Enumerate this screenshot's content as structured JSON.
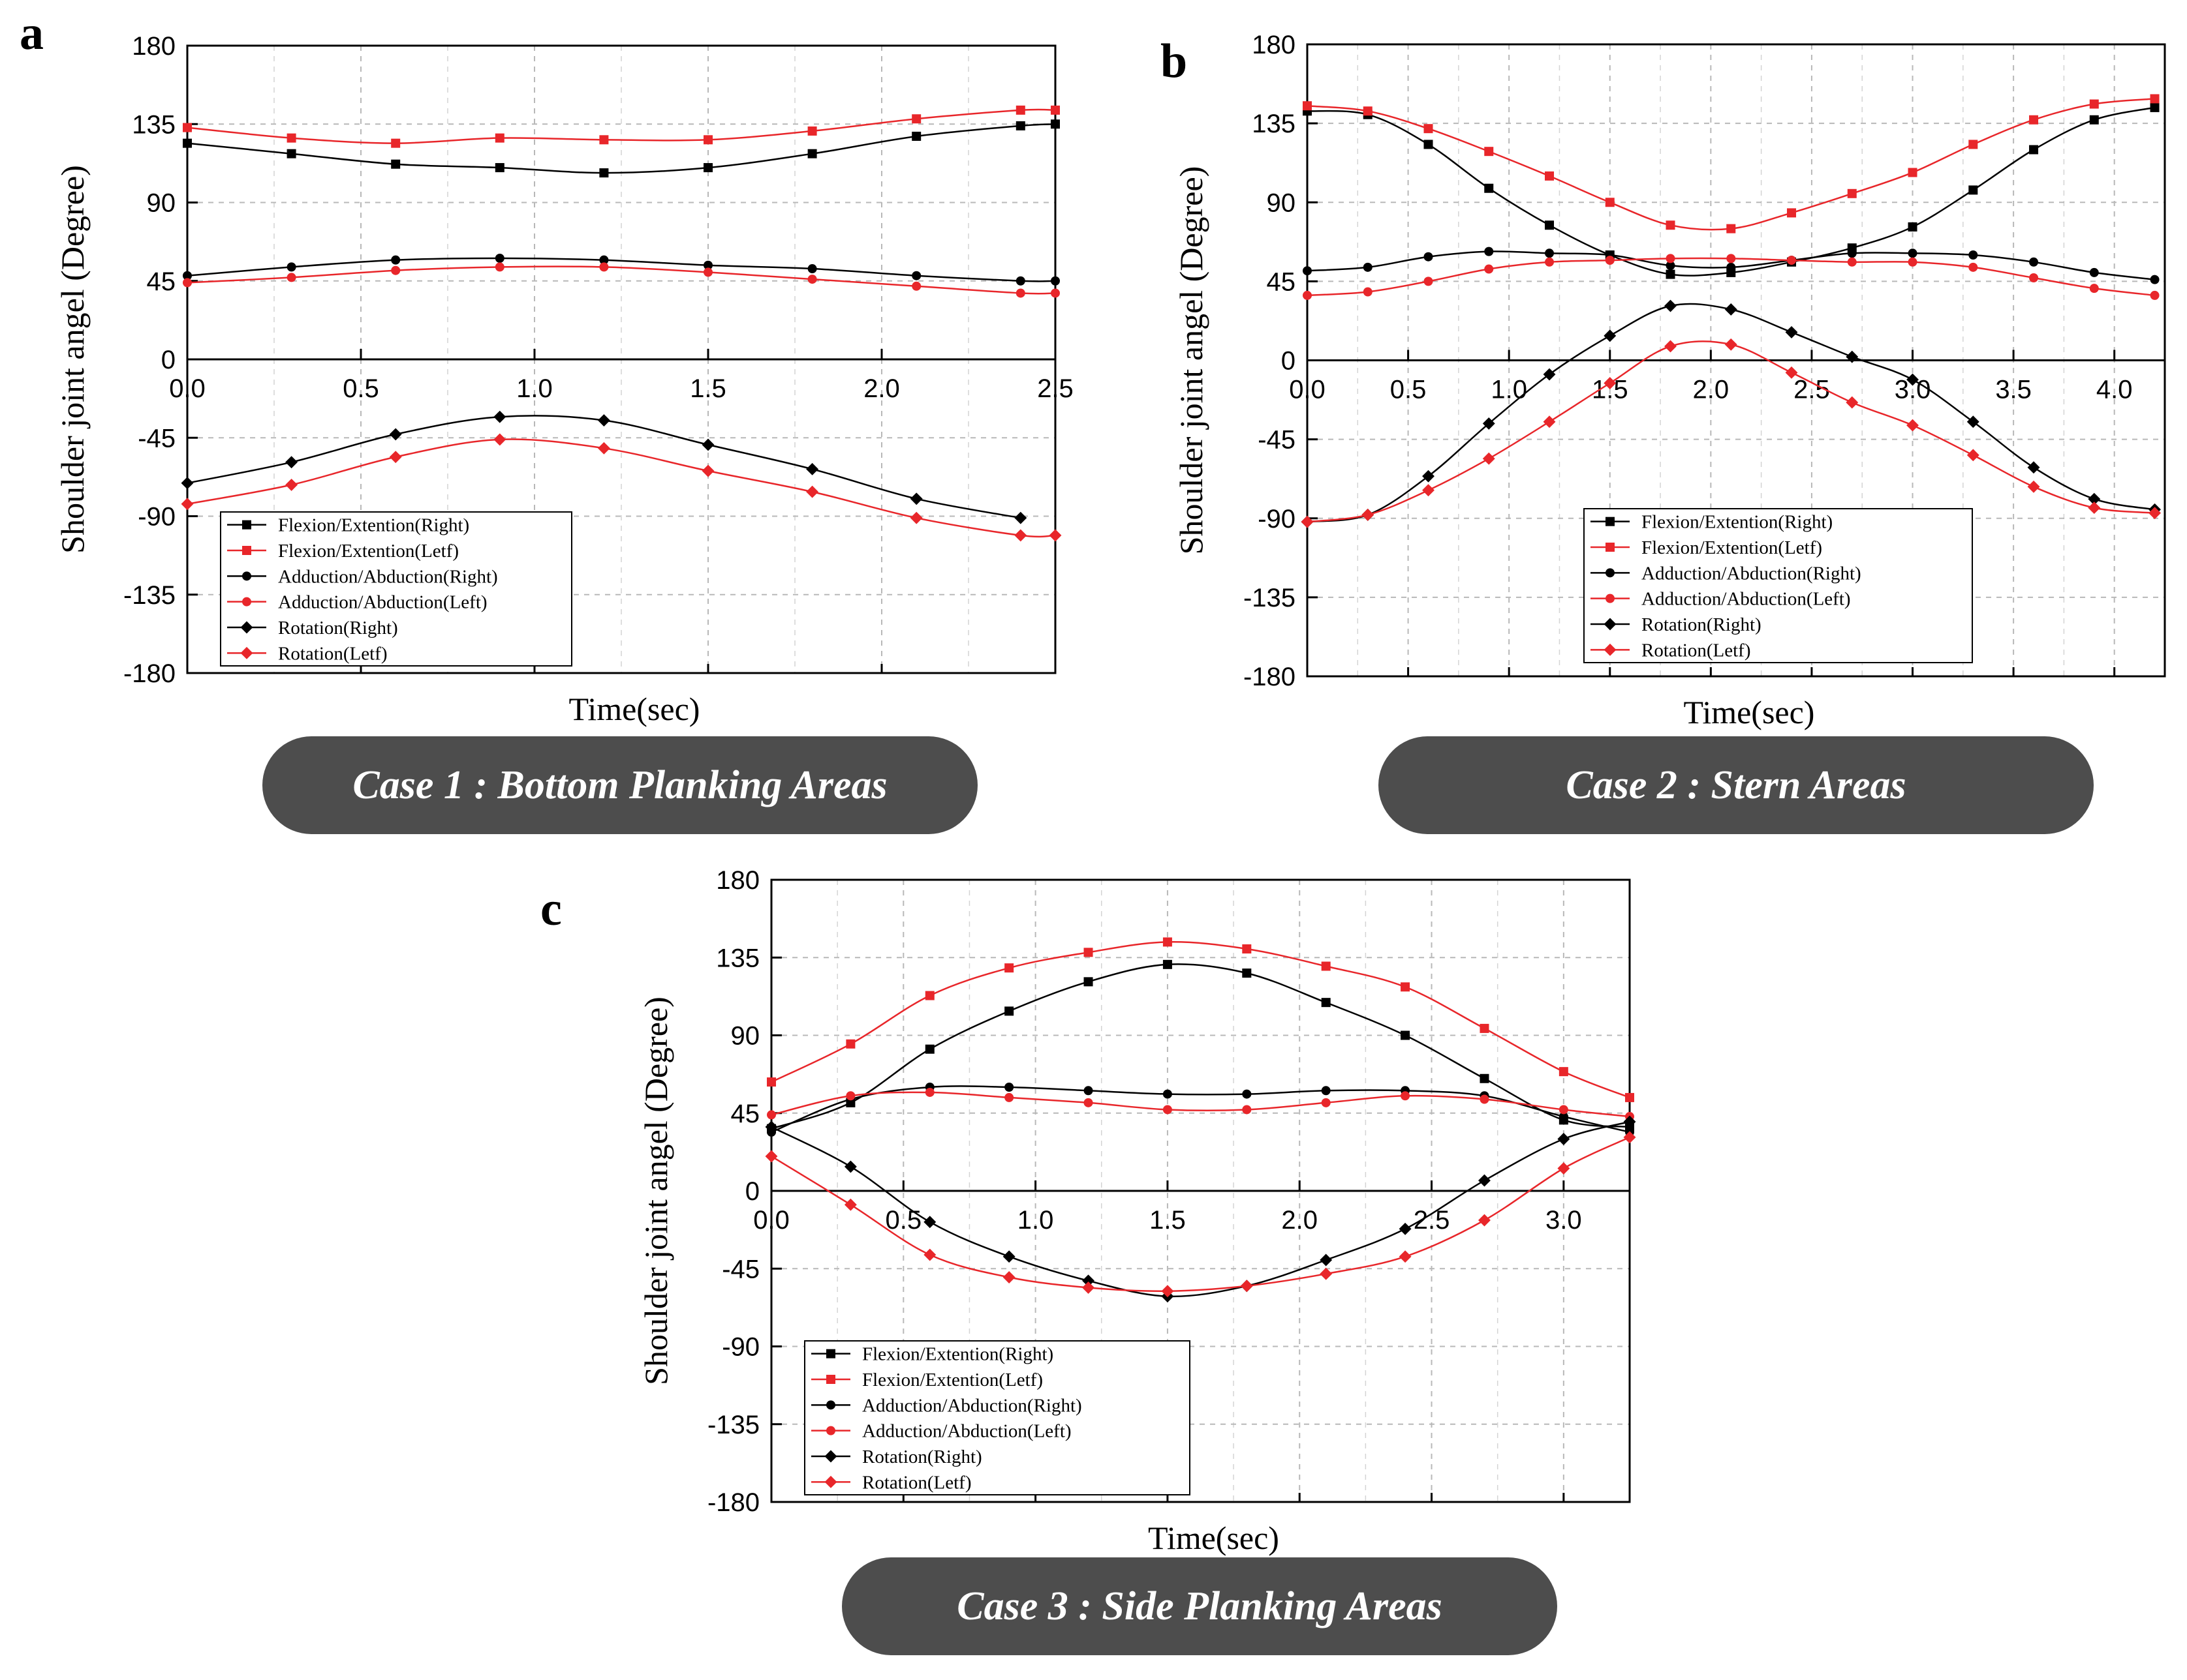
{
  "captions": {
    "a": "Case 1 : Bottom Planking Areas",
    "b": "Case 2 : Stern Areas",
    "c": "Case 3 : Side Planking Areas"
  },
  "colors": {
    "black": "#000000",
    "red": "#e8262a",
    "caption_bg": "#4d4d4d"
  },
  "chart_data": [
    {
      "id": "a",
      "letter": "a",
      "type": "line",
      "title": "",
      "xlabel": "Time(sec)",
      "ylabel": "Shoulder joint angel (Degree)",
      "xlim": [
        0,
        2.5
      ],
      "ylim": [
        -180,
        180
      ],
      "xticks": [
        "0.0",
        "0.5",
        "1.0",
        "1.5",
        "2.0",
        "2.5"
      ],
      "yticks": [
        "180",
        "135",
        "90",
        "45",
        "0",
        "-45",
        "-90",
        "-135",
        "-180"
      ],
      "grid": true,
      "legend_placement": "lower-left",
      "series": [
        {
          "name": "Flexion/Extention(Right)",
          "color": "#000000",
          "marker": "square",
          "x": [
            0,
            0.3,
            0.6,
            0.9,
            1.2,
            1.5,
            1.8,
            2.1,
            2.4,
            2.5
          ],
          "y": [
            124,
            118,
            112,
            110,
            107,
            110,
            118,
            128,
            134,
            135
          ]
        },
        {
          "name": "Flexion/Extention(Letf)",
          "color": "#e8262a",
          "marker": "square",
          "x": [
            0,
            0.3,
            0.6,
            0.9,
            1.2,
            1.5,
            1.8,
            2.1,
            2.4,
            2.5
          ],
          "y": [
            133,
            127,
            124,
            127,
            126,
            126,
            131,
            138,
            143,
            143
          ]
        },
        {
          "name": "Adduction/Abduction(Right)",
          "color": "#000000",
          "marker": "circle",
          "x": [
            0,
            0.3,
            0.6,
            0.9,
            1.2,
            1.5,
            1.8,
            2.1,
            2.4,
            2.5
          ],
          "y": [
            48,
            53,
            57,
            58,
            57,
            54,
            52,
            48,
            45,
            45
          ]
        },
        {
          "name": "Adduction/Abduction(Left)",
          "color": "#e8262a",
          "marker": "circle",
          "x": [
            0,
            0.3,
            0.6,
            0.9,
            1.2,
            1.5,
            1.8,
            2.1,
            2.4,
            2.5
          ],
          "y": [
            44,
            47,
            51,
            53,
            53,
            50,
            46,
            42,
            38,
            38
          ]
        },
        {
          "name": "Rotation(Right)",
          "color": "#000000",
          "marker": "diamond",
          "x": [
            0,
            0.3,
            0.6,
            0.9,
            1.2,
            1.5,
            1.8,
            2.1,
            2.4
          ],
          "y": [
            -71,
            -59,
            -43,
            -33,
            -35,
            -49,
            -63,
            -80,
            -91
          ]
        },
        {
          "name": "Rotation(Letf)",
          "color": "#e8262a",
          "marker": "diamond",
          "x": [
            0,
            0.3,
            0.6,
            0.9,
            1.2,
            1.5,
            1.8,
            2.1,
            2.4,
            2.5
          ],
          "y": [
            -83,
            -72,
            -56,
            -46,
            -51,
            -64,
            -76,
            -91,
            -101,
            -101
          ]
        }
      ]
    },
    {
      "id": "b",
      "letter": "b",
      "type": "line",
      "title": "",
      "xlabel": "Time(sec)",
      "ylabel": "Shoulder joint angel (Degree)",
      "xlim": [
        0,
        4.25
      ],
      "ylim": [
        -180,
        180
      ],
      "xticks": [
        "0.0",
        "0.5",
        "1.0",
        "1.5",
        "2.0",
        "2.5",
        "3.0",
        "3.5",
        "4.0"
      ],
      "yticks": [
        "180",
        "135",
        "90",
        "45",
        "0",
        "-45",
        "-90",
        "-135",
        "-180"
      ],
      "grid": true,
      "legend_placement": "lower-center",
      "series": [
        {
          "name": "Flexion/Extention(Right)",
          "color": "#000000",
          "marker": "square",
          "x": [
            0,
            0.3,
            0.6,
            0.9,
            1.2,
            1.5,
            1.8,
            2.1,
            2.4,
            2.7,
            3.0,
            3.3,
            3.6,
            3.9,
            4.2
          ],
          "y": [
            142,
            140,
            123,
            98,
            77,
            60,
            49,
            50,
            56,
            64,
            76,
            97,
            120,
            137,
            144
          ]
        },
        {
          "name": "Flexion/Extention(Letf)",
          "color": "#e8262a",
          "marker": "square",
          "x": [
            0,
            0.3,
            0.6,
            0.9,
            1.2,
            1.5,
            1.8,
            2.1,
            2.4,
            2.7,
            3.0,
            3.3,
            3.6,
            3.9,
            4.2
          ],
          "y": [
            145,
            142,
            132,
            119,
            105,
            90,
            77,
            75,
            84,
            95,
            107,
            123,
            137,
            146,
            149
          ]
        },
        {
          "name": "Adduction/Abduction(Right)",
          "color": "#000000",
          "marker": "circle",
          "x": [
            0,
            0.3,
            0.6,
            0.9,
            1.2,
            1.5,
            1.8,
            2.1,
            2.4,
            2.7,
            3.0,
            3.3,
            3.6,
            3.9,
            4.2
          ],
          "y": [
            51,
            53,
            59,
            62,
            61,
            60,
            54,
            53,
            57,
            61,
            61,
            60,
            56,
            50,
            46
          ]
        },
        {
          "name": "Adduction/Abduction(Left)",
          "color": "#e8262a",
          "marker": "circle",
          "x": [
            0,
            0.3,
            0.6,
            0.9,
            1.2,
            1.5,
            1.8,
            2.1,
            2.4,
            2.7,
            3.0,
            3.3,
            3.6,
            3.9,
            4.2
          ],
          "y": [
            37,
            39,
            45,
            52,
            56,
            57,
            58,
            58,
            57,
            56,
            56,
            53,
            47,
            41,
            37
          ]
        },
        {
          "name": "Rotation(Right)",
          "color": "#000000",
          "marker": "diamond",
          "x": [
            0,
            0.3,
            0.6,
            0.9,
            1.2,
            1.5,
            1.8,
            2.1,
            2.4,
            2.7,
            3.0,
            3.3,
            3.6,
            3.9,
            4.2
          ],
          "y": [
            -92,
            -88,
            -66,
            -36,
            -8,
            14,
            31,
            29,
            16,
            2,
            -11,
            -35,
            -61,
            -79,
            -85
          ]
        },
        {
          "name": "Rotation(Letf)",
          "color": "#e8262a",
          "marker": "diamond",
          "x": [
            0,
            0.3,
            0.6,
            0.9,
            1.2,
            1.5,
            1.8,
            2.1,
            2.4,
            2.7,
            3.0,
            3.3,
            3.6,
            3.9,
            4.2
          ],
          "y": [
            -92,
            -88,
            -74,
            -56,
            -35,
            -13,
            8,
            9,
            -7,
            -24,
            -37,
            -54,
            -72,
            -84,
            -87
          ]
        }
      ]
    },
    {
      "id": "c",
      "letter": "c",
      "type": "line",
      "title": "",
      "xlabel": "Time(sec)",
      "ylabel": "Shoulder joint angel (Degree)",
      "xlim": [
        0,
        3.25
      ],
      "ylim": [
        -180,
        180
      ],
      "xticks": [
        "0.0",
        "0.5",
        "1.0",
        "1.5",
        "2.0",
        "2.5",
        "3.0"
      ],
      "yticks": [
        "180",
        "135",
        "90",
        "45",
        "0",
        "-45",
        "-90",
        "-135",
        "-180"
      ],
      "grid": true,
      "legend_placement": "lower-left",
      "series": [
        {
          "name": "Flexion/Extention(Right)",
          "color": "#000000",
          "marker": "square",
          "x": [
            0,
            0.3,
            0.6,
            0.9,
            1.2,
            1.5,
            1.8,
            2.1,
            2.4,
            2.7,
            3.0,
            3.25
          ],
          "y": [
            36,
            51,
            82,
            104,
            121,
            131,
            126,
            109,
            90,
            65,
            41,
            37
          ]
        },
        {
          "name": "Flexion/Extention(Letf)",
          "color": "#e8262a",
          "marker": "square",
          "x": [
            0,
            0.3,
            0.6,
            0.9,
            1.2,
            1.5,
            1.8,
            2.1,
            2.4,
            2.7,
            3.0,
            3.25
          ],
          "y": [
            63,
            85,
            113,
            129,
            138,
            144,
            140,
            130,
            118,
            94,
            69,
            54
          ]
        },
        {
          "name": "Adduction/Abduction(Right)",
          "color": "#000000",
          "marker": "circle",
          "x": [
            0,
            0.3,
            0.6,
            0.9,
            1.2,
            1.5,
            1.8,
            2.1,
            2.4,
            2.7,
            3.0,
            3.25
          ],
          "y": [
            34,
            53,
            60,
            60,
            58,
            56,
            56,
            58,
            58,
            55,
            43,
            34
          ]
        },
        {
          "name": "Adduction/Abduction(Left)",
          "color": "#e8262a",
          "marker": "circle",
          "x": [
            0,
            0.3,
            0.6,
            0.9,
            1.2,
            1.5,
            1.8,
            2.1,
            2.4,
            2.7,
            3.0,
            3.25
          ],
          "y": [
            44,
            55,
            57,
            54,
            51,
            47,
            47,
            51,
            55,
            53,
            47,
            43
          ]
        },
        {
          "name": "Rotation(Right)",
          "color": "#000000",
          "marker": "diamond",
          "x": [
            0,
            0.3,
            0.6,
            0.9,
            1.2,
            1.5,
            1.8,
            2.1,
            2.4,
            2.7,
            3.0,
            3.25
          ],
          "y": [
            37,
            14,
            -18,
            -38,
            -52,
            -61,
            -55,
            -40,
            -22,
            6,
            30,
            40
          ]
        },
        {
          "name": "Rotation(Letf)",
          "color": "#e8262a",
          "marker": "diamond",
          "x": [
            0,
            0.3,
            0.6,
            0.9,
            1.2,
            1.5,
            1.8,
            2.1,
            2.4,
            2.7,
            3.0,
            3.25
          ],
          "y": [
            20,
            -8,
            -37,
            -50,
            -56,
            -58,
            -55,
            -48,
            -38,
            -17,
            13,
            31
          ]
        }
      ]
    }
  ]
}
